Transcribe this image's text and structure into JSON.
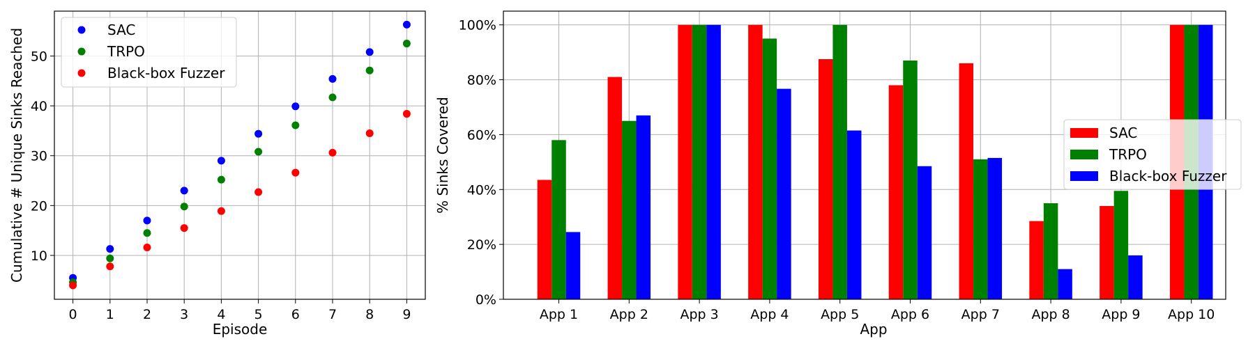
{
  "chart_data": [
    {
      "type": "scatter",
      "xlabel": "Episode",
      "ylabel": "Cumulative # Unique Sinks Reached",
      "xlim": [
        -0.5,
        9.5
      ],
      "ylim": [
        1.2,
        59.0
      ],
      "x_ticks": [
        "0",
        "1",
        "2",
        "3",
        "4",
        "5",
        "6",
        "7",
        "8",
        "9"
      ],
      "y_ticks": [
        "10",
        "20",
        "30",
        "40",
        "50"
      ],
      "grid": true,
      "legend_placement": "upper-left",
      "x": [
        0,
        1,
        2,
        3,
        4,
        5,
        6,
        7,
        8,
        9
      ],
      "series": [
        {
          "name": "SAC",
          "color": "#0000ff",
          "values": [
            5.5,
            11.3,
            17.0,
            23.0,
            29.0,
            34.4,
            39.9,
            45.4,
            50.8,
            56.3
          ]
        },
        {
          "name": "TRPO",
          "color": "#008000",
          "values": [
            4.6,
            9.4,
            14.5,
            19.8,
            25.2,
            30.8,
            36.1,
            41.7,
            47.1,
            52.5
          ]
        },
        {
          "name": "Black-box Fuzzer",
          "color": "#ff0000",
          "values": [
            4.0,
            7.8,
            11.6,
            15.5,
            18.9,
            22.7,
            26.6,
            30.6,
            34.5,
            38.4
          ]
        }
      ]
    },
    {
      "type": "bar",
      "xlabel": "App",
      "ylabel": "% Sinks Covered",
      "ylim": [
        0,
        105
      ],
      "y_ticks": [
        "0%",
        "20%",
        "40%",
        "60%",
        "80%",
        "100%"
      ],
      "grid": true,
      "legend_placement": "center-right",
      "categories": [
        "App 1",
        "App 2",
        "App 3",
        "App 4",
        "App 5",
        "App 6",
        "App 7",
        "App 8",
        "App 9",
        "App 10"
      ],
      "series": [
        {
          "name": "SAC",
          "color": "#ff0000",
          "values": [
            43.5,
            81,
            100,
            100,
            87.5,
            78,
            86,
            28.5,
            34,
            100
          ]
        },
        {
          "name": "TRPO",
          "color": "#008000",
          "values": [
            58,
            65,
            100,
            95,
            100,
            87,
            51,
            35,
            39.5,
            100
          ]
        },
        {
          "name": "Black-box Fuzzer",
          "color": "#0000ff",
          "values": [
            24.5,
            67,
            100,
            76.7,
            61.5,
            48.5,
            51.5,
            11,
            16,
            100
          ]
        }
      ]
    }
  ]
}
